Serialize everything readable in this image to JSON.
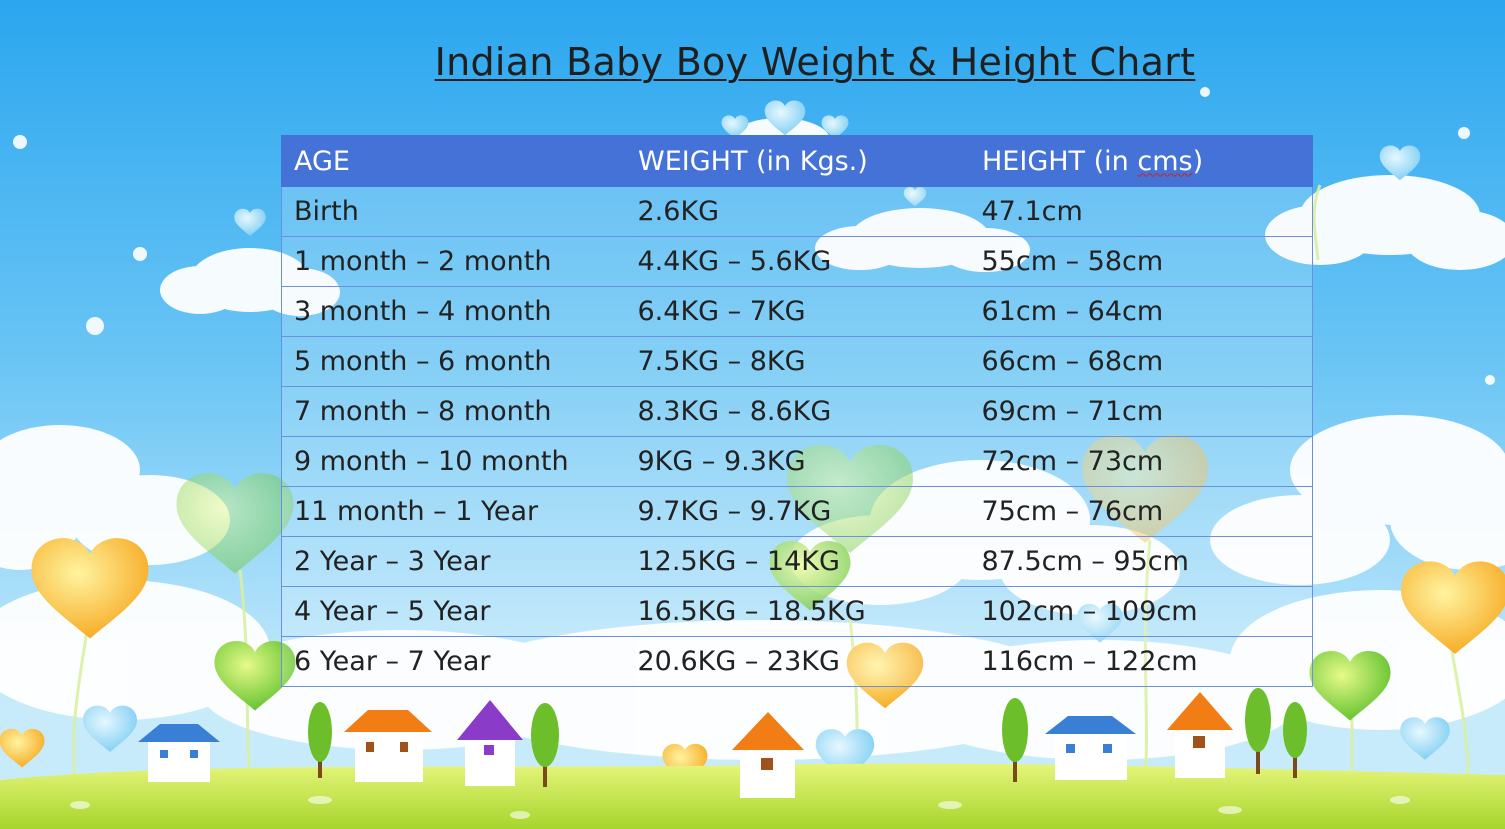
{
  "title": "Indian Baby Boy Weight & Height Chart",
  "table": {
    "headers": {
      "age": "AGE",
      "weight": "WEIGHT (in Kgs.)",
      "height_prefix": "HEIGHT (in ",
      "height_unit": "cms",
      "height_suffix": ")"
    },
    "rows": [
      {
        "age": "Birth",
        "weight": "2.6KG",
        "height": "47.1cm"
      },
      {
        "age": "1 month – 2 month",
        "weight": "4.4KG – 5.6KG",
        "height": "55cm – 58cm"
      },
      {
        "age": "3 month – 4 month",
        "weight": "6.4KG – 7KG",
        "height": "61cm – 64cm"
      },
      {
        "age": "5 month – 6 month",
        "weight": "7.5KG – 8KG",
        "height": "66cm – 68cm"
      },
      {
        "age": "7 month – 8 month",
        "weight": "8.3KG – 8.6KG",
        "height": "69cm – 71cm"
      },
      {
        "age": "9 month – 10 month",
        "weight": "9KG – 9.3KG",
        "height": "72cm – 73cm"
      },
      {
        "age": "11 month – 1 Year",
        "weight": "9.7KG – 9.7KG",
        "height": "75cm – 76cm"
      },
      {
        "age": "2 Year – 3 Year",
        "weight": "12.5KG – 14KG",
        "height": "87.5cm – 95cm"
      },
      {
        "age": "4 Year – 5 Year",
        "weight": "16.5KG – 18.5KG",
        "height": "102cm – 109cm"
      },
      {
        "age": "6 Year – 7 Year",
        "weight": "20.6KG – 23KG",
        "height": "116cm – 122cm"
      }
    ]
  },
  "colors": {
    "header_blue": "#4472d6",
    "sky_top": "#2fa9f0",
    "sky_bottom": "#bfe6fb",
    "grass": "#a8d830"
  },
  "decorations": [
    "heart-balloon-icon",
    "cloud-icon",
    "house-icon",
    "tree-icon"
  ]
}
